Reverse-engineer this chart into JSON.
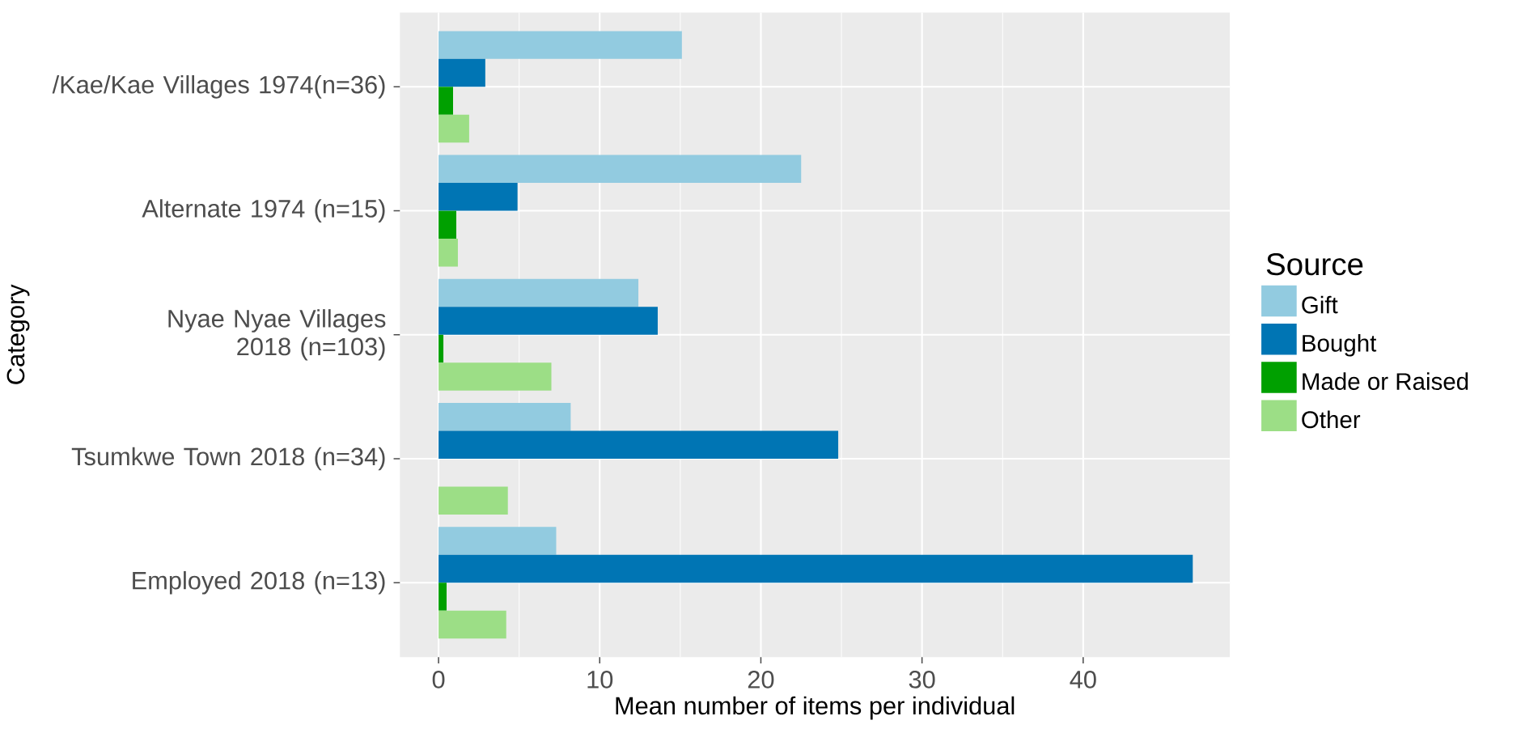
{
  "chart_data": {
    "type": "bar",
    "orientation": "horizontal",
    "categories": [
      "/Kae/Kae Villages 1974(n=36)",
      "Alternate 1974 (n=15)",
      "Nyae Nyae Villages 2018 (n=103)",
      "Tsumkwe Town 2018 (n=34)",
      "Employed 2018 (n=13)"
    ],
    "series": [
      {
        "name": "Gift",
        "color": "#92cbe0",
        "values": [
          15.1,
          22.5,
          12.4,
          8.2,
          7.3
        ]
      },
      {
        "name": "Bought",
        "color": "#0075b4",
        "values": [
          2.9,
          4.9,
          13.6,
          24.8,
          46.8
        ]
      },
      {
        "name": "Made or Raised",
        "color": "#00a000",
        "values": [
          0.9,
          1.1,
          0.3,
          0,
          0.5
        ]
      },
      {
        "name": "Other",
        "color": "#9cde86",
        "values": [
          1.9,
          1.2,
          7.0,
          4.3,
          4.2
        ]
      }
    ],
    "xlabel": "Mean number of items per individual",
    "ylabel": "Category",
    "legend_title": "Source",
    "xlim": [
      -2.4,
      49.1
    ],
    "xticks": [
      0,
      10,
      20,
      30,
      40
    ],
    "grid": true,
    "legend": "right"
  }
}
